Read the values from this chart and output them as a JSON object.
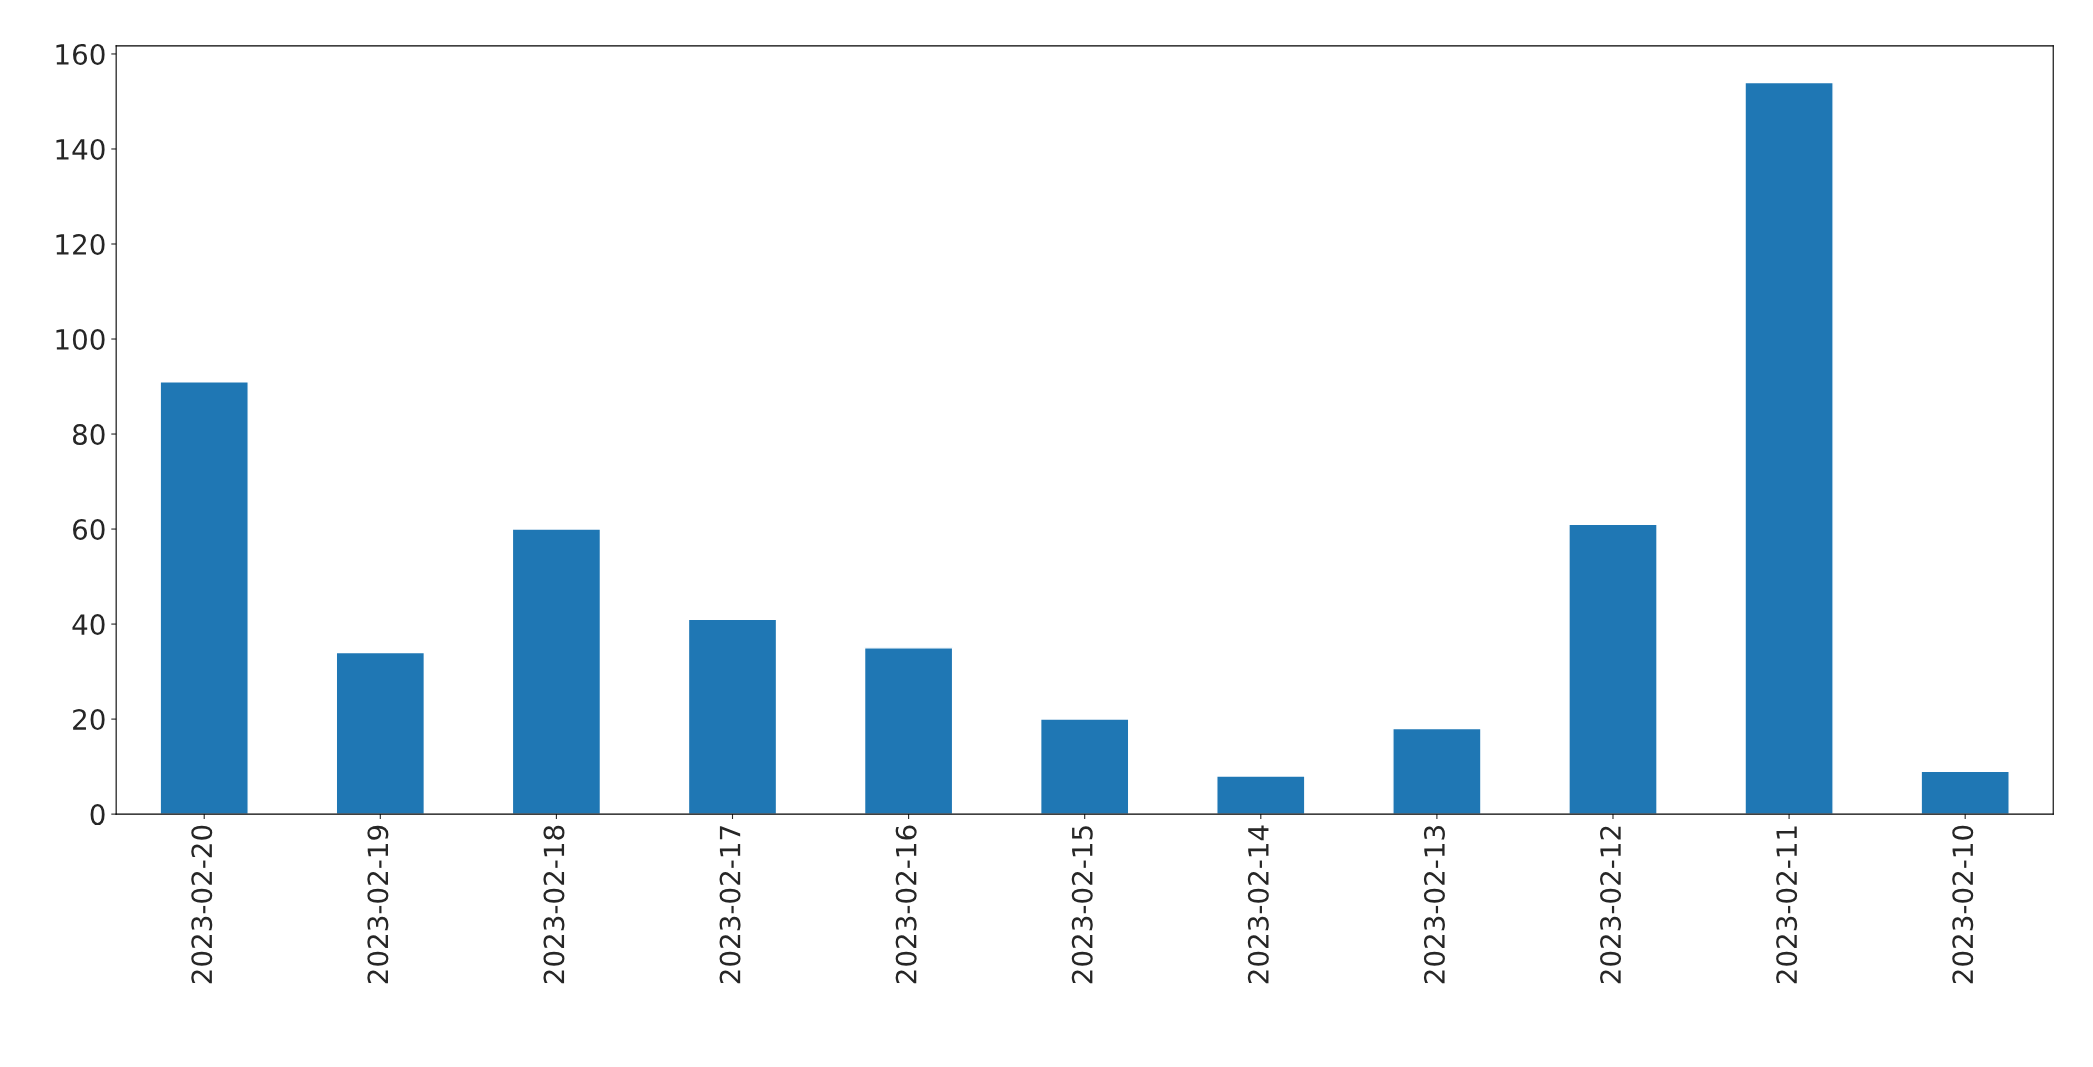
{
  "chart_data": {
    "type": "bar",
    "categories": [
      "2023-02-20",
      "2023-02-19",
      "2023-02-18",
      "2023-02-17",
      "2023-02-16",
      "2023-02-15",
      "2023-02-14",
      "2023-02-13",
      "2023-02-12",
      "2023-02-11",
      "2023-02-10"
    ],
    "values": [
      91,
      34,
      60,
      41,
      35,
      20,
      8,
      18,
      61,
      154,
      9
    ],
    "color": "#1f77b4",
    "ylim": [
      0,
      161.7
    ],
    "yticks": [
      0,
      20,
      40,
      60,
      80,
      100,
      120,
      140,
      160
    ],
    "grid": false,
    "legend": false
  }
}
